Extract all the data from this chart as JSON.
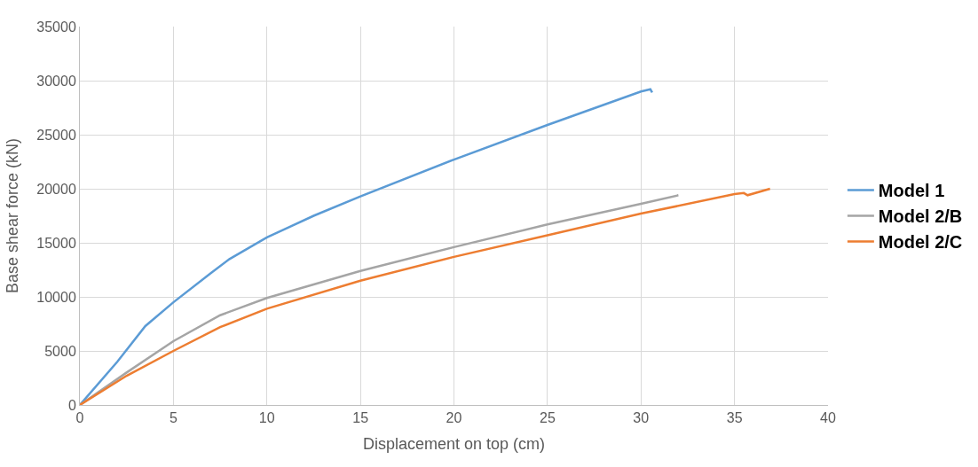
{
  "chart_data": {
    "type": "line",
    "xlabel": "Displacement on top (cm)",
    "ylabel": "Base shear force (kN)",
    "xlim": [
      0,
      40
    ],
    "xticks": [
      0,
      5,
      10,
      15,
      20,
      25,
      30,
      35,
      40
    ],
    "ylim": [
      0,
      35000
    ],
    "yticks": [
      0,
      5000,
      10000,
      15000,
      20000,
      25000,
      30000,
      35000
    ],
    "grid": true,
    "legend": "right",
    "marker": "none",
    "line_style": "solid",
    "series": [
      {
        "name": "Model 1",
        "color": "#5b9bd5",
        "x": [
          0,
          2,
          3.5,
          5,
          7,
          8,
          10,
          12.5,
          15,
          20,
          25,
          30,
          30.5,
          30.6
        ],
        "values": [
          0,
          4000,
          7300,
          9500,
          12200,
          13500,
          15500,
          17500,
          19300,
          22700,
          25900,
          29000,
          29200,
          28900
        ]
      },
      {
        "name": "Model 2/B",
        "color": "#a5a5a5",
        "x": [
          0,
          2.5,
          5,
          7.5,
          10,
          15,
          20,
          25,
          30,
          32
        ],
        "values": [
          0,
          3000,
          5900,
          8300,
          9900,
          12400,
          14600,
          16700,
          18600,
          19400
        ]
      },
      {
        "name": "Model 2/C",
        "color": "#ed7d31",
        "x": [
          0,
          2.5,
          5,
          7.5,
          10,
          15,
          20,
          25,
          30,
          35,
          35.5,
          35.7,
          36.9
        ],
        "values": [
          0,
          2700,
          5000,
          7200,
          8900,
          11500,
          13700,
          15700,
          17700,
          19500,
          19600,
          19400,
          20000
        ]
      }
    ]
  }
}
